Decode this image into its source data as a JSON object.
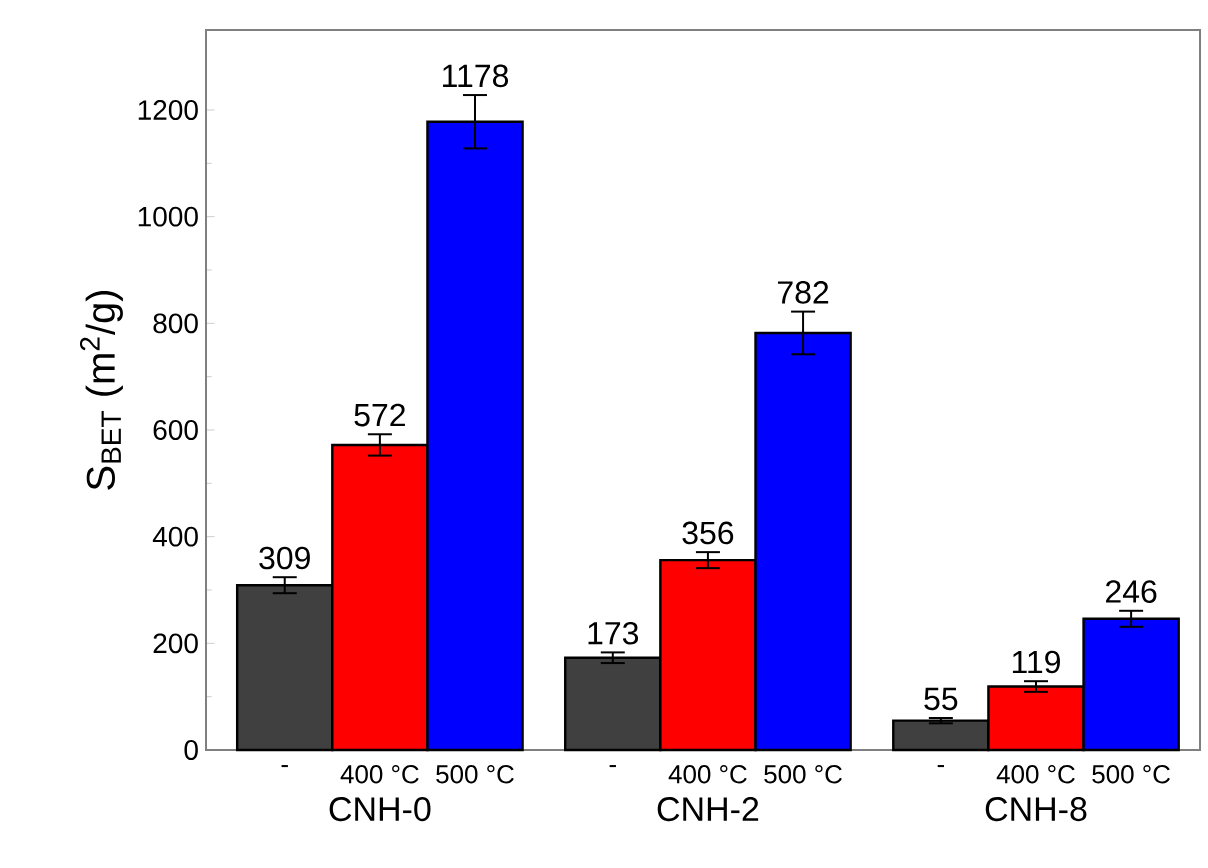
{
  "chart_data": {
    "type": "bar",
    "ylabel": "S$_{BET}$ (m$^{2}$/g)",
    "categories": [
      "CNH-0",
      "CNH-2",
      "CNH-8"
    ],
    "series": [
      {
        "name": "-",
        "color": "#404040",
        "values": [
          309,
          173,
          55
        ],
        "errors": [
          15,
          10,
          5
        ]
      },
      {
        "name": "400 °C",
        "color": "#ff0000",
        "values": [
          572,
          356,
          119
        ],
        "errors": [
          20,
          15,
          10
        ]
      },
      {
        "name": "500 °C",
        "color": "#0000ff",
        "values": [
          1178,
          782,
          246
        ],
        "errors": [
          50,
          40,
          15
        ]
      }
    ],
    "ylim": [
      0,
      1350
    ],
    "yticks": [
      0,
      200,
      400,
      600,
      800,
      1000,
      1200
    ],
    "data_labels": true
  }
}
